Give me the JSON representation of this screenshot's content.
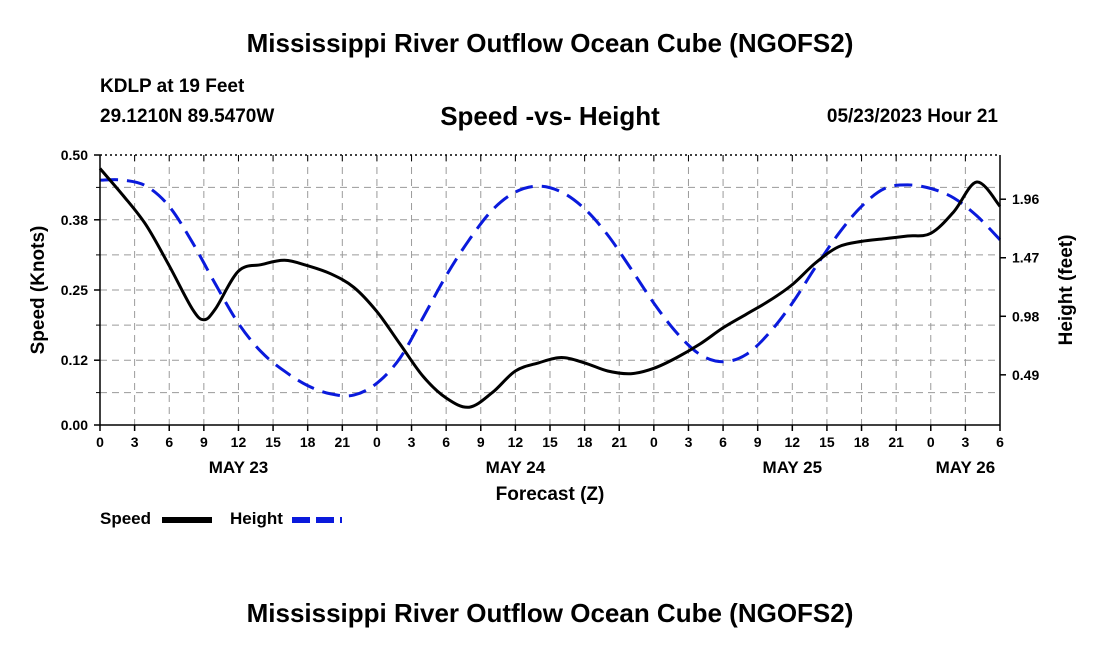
{
  "header": {
    "title": "Mississippi River Outflow Ocean Cube (NGOFS2)",
    "station": "KDLP at 19 Feet",
    "coords": "29.1210N  89.5470W",
    "subtitle": "Speed -vs- Height",
    "timestamp": "05/23/2023 Hour 21"
  },
  "footer": {
    "title": "Mississippi River Outflow Ocean Cube (NGOFS2)"
  },
  "legend": {
    "speed_label": "Speed",
    "height_label": "Height"
  },
  "colors": {
    "speed": "#000000",
    "height": "#0a1adc",
    "grid": "#9a9a9a"
  },
  "chart_data": {
    "type": "line",
    "title": "Speed -vs- Height",
    "xlabel": "Forecast (Z)",
    "ylabel": "Speed (Knots)",
    "y2label": "Height (feet)",
    "xlim": [
      0,
      78
    ],
    "ylim": [
      0,
      0.5
    ],
    "y2lim": [
      0.07,
      2.33
    ],
    "x_ticks": [
      0,
      3,
      6,
      9,
      12,
      15,
      18,
      21,
      24,
      27,
      30,
      33,
      36,
      39,
      42,
      45,
      48,
      51,
      54,
      57,
      60,
      63,
      66,
      69,
      72,
      75,
      78
    ],
    "x_tick_labels": [
      "0",
      "3",
      "6",
      "9",
      "12",
      "15",
      "18",
      "21",
      "0",
      "3",
      "6",
      "9",
      "12",
      "15",
      "18",
      "21",
      "0",
      "3",
      "6",
      "9",
      "12",
      "15",
      "18",
      "21",
      "0",
      "3",
      "6"
    ],
    "date_labels": [
      {
        "x": 12,
        "label": "MAY 23"
      },
      {
        "x": 36,
        "label": "MAY 24"
      },
      {
        "x": 60,
        "label": "MAY 25"
      },
      {
        "x": 75,
        "label": "MAY 26"
      }
    ],
    "y_ticks": [
      0.0,
      0.12,
      0.25,
      0.38,
      0.5
    ],
    "y_tick_labels": [
      "0.00",
      "0.12",
      "0.25",
      "0.38",
      "0.50"
    ],
    "y2_ticks": [
      0.49,
      0.98,
      1.47,
      1.96
    ],
    "y2_tick_labels": [
      "0.49",
      "0.98",
      "1.47",
      "1.96"
    ],
    "series": [
      {
        "name": "Speed",
        "axis": "left",
        "style": "solid",
        "x": [
          0,
          2,
          4,
          6,
          8,
          9,
          10,
          12,
          14,
          16,
          18,
          20,
          22,
          24,
          26,
          28,
          30,
          32,
          34,
          36,
          38,
          40,
          42,
          44,
          46,
          48,
          50,
          52,
          54,
          56,
          58,
          60,
          62,
          64,
          66,
          68,
          70,
          72,
          74,
          76,
          78
        ],
        "values": [
          0.475,
          0.425,
          0.37,
          0.295,
          0.215,
          0.195,
          0.215,
          0.285,
          0.297,
          0.305,
          0.295,
          0.28,
          0.255,
          0.21,
          0.15,
          0.09,
          0.05,
          0.033,
          0.06,
          0.1,
          0.115,
          0.125,
          0.115,
          0.1,
          0.095,
          0.105,
          0.125,
          0.15,
          0.18,
          0.205,
          0.23,
          0.26,
          0.3,
          0.33,
          0.34,
          0.345,
          0.35,
          0.355,
          0.395,
          0.45,
          0.405
        ]
      },
      {
        "name": "Height",
        "axis": "right",
        "style": "dashed",
        "x": [
          0,
          2,
          4,
          6,
          8,
          10,
          12,
          14,
          16,
          18,
          20,
          22,
          24,
          26,
          28,
          30,
          32,
          34,
          36,
          38,
          40,
          42,
          44,
          46,
          48,
          50,
          52,
          54,
          56,
          58,
          60,
          62,
          64,
          66,
          68,
          70,
          72,
          74,
          76,
          78
        ],
        "values": [
          2.12,
          2.12,
          2.07,
          1.9,
          1.6,
          1.25,
          0.92,
          0.68,
          0.52,
          0.4,
          0.33,
          0.32,
          0.42,
          0.63,
          0.97,
          1.32,
          1.62,
          1.87,
          2.02,
          2.07,
          2.02,
          1.88,
          1.66,
          1.38,
          1.09,
          0.84,
          0.66,
          0.6,
          0.66,
          0.84,
          1.09,
          1.39,
          1.67,
          1.9,
          2.05,
          2.08,
          2.05,
          1.97,
          1.82,
          1.62
        ]
      }
    ]
  }
}
